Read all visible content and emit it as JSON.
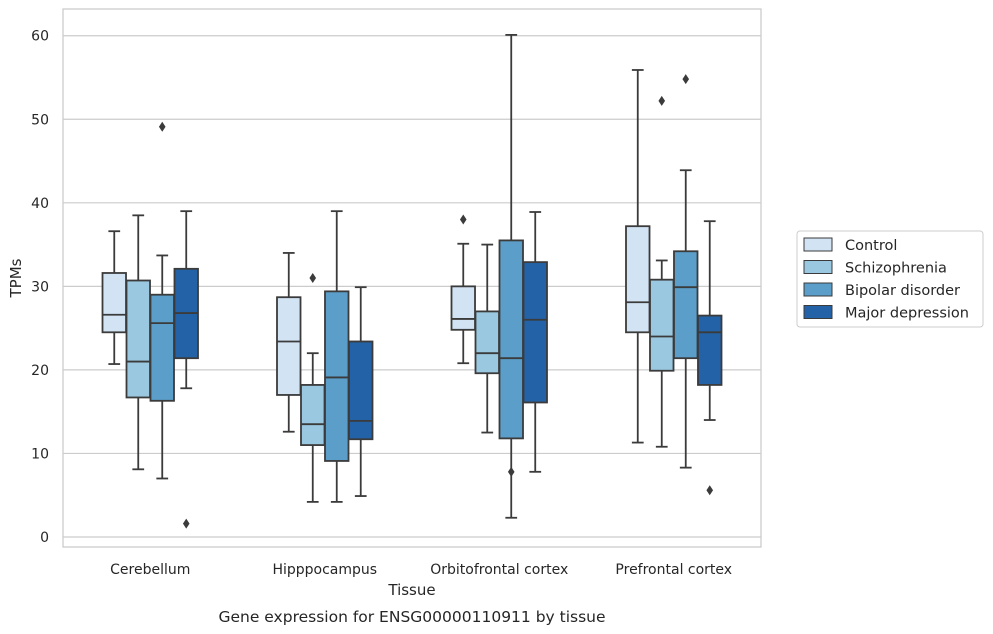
{
  "caption": "Gene expression for ENSG00000110911 by tissue",
  "chart_data": {
    "type": "box",
    "xlabel": "Tissue",
    "ylabel": "TPMs",
    "ylim": [
      -1.2,
      63.2
    ],
    "yticks": [
      0,
      10,
      20,
      30,
      40,
      50,
      60
    ],
    "grid": "horizontal",
    "legend_position": "center-right",
    "categories": [
      "Cerebellum",
      "Hipppocampus",
      "Orbitofrontal cortex",
      "Prefrontal cortex"
    ],
    "series": [
      {
        "name": "Control",
        "color": "#d2e3f3",
        "boxes": [
          {
            "whislo": 20.7,
            "q1": 24.5,
            "med": 26.6,
            "q3": 31.6,
            "whishi": 36.6,
            "fliers": []
          },
          {
            "whislo": 12.6,
            "q1": 17.0,
            "med": 23.4,
            "q3": 28.7,
            "whishi": 34.0,
            "fliers": []
          },
          {
            "whislo": 20.8,
            "q1": 24.8,
            "med": 26.1,
            "q3": 30.0,
            "whishi": 35.1,
            "fliers": [
              38.0
            ]
          },
          {
            "whislo": 11.3,
            "q1": 24.5,
            "med": 28.1,
            "q3": 37.2,
            "whishi": 55.9,
            "fliers": []
          }
        ]
      },
      {
        "name": "Schizophrenia",
        "color": "#9ac8e0",
        "boxes": [
          {
            "whislo": 8.1,
            "q1": 16.7,
            "med": 21.0,
            "q3": 30.7,
            "whishi": 38.5,
            "fliers": []
          },
          {
            "whislo": 4.2,
            "q1": 11.0,
            "med": 13.5,
            "q3": 18.2,
            "whishi": 22.0,
            "fliers": [
              31.0
            ]
          },
          {
            "whislo": 12.5,
            "q1": 19.6,
            "med": 22.0,
            "q3": 27.0,
            "whishi": 35.0,
            "fliers": []
          },
          {
            "whislo": 10.8,
            "q1": 19.9,
            "med": 24.0,
            "q3": 30.8,
            "whishi": 33.1,
            "fliers": [
              52.2
            ]
          }
        ]
      },
      {
        "name": "Bipolar disorder",
        "color": "#5a9ec9",
        "boxes": [
          {
            "whislo": 7.0,
            "q1": 16.3,
            "med": 25.6,
            "q3": 29.0,
            "whishi": 33.7,
            "fliers": [
              49.1
            ]
          },
          {
            "whislo": 4.2,
            "q1": 9.1,
            "med": 19.1,
            "q3": 29.4,
            "whishi": 39.0,
            "fliers": []
          },
          {
            "whislo": 2.3,
            "q1": 11.8,
            "med": 21.4,
            "q3": 35.5,
            "whishi": 60.1,
            "fliers": [
              7.8
            ]
          },
          {
            "whislo": 8.3,
            "q1": 21.4,
            "med": 29.9,
            "q3": 34.2,
            "whishi": 43.9,
            "fliers": [
              54.8
            ]
          }
        ]
      },
      {
        "name": "Major depression",
        "color": "#2362a7",
        "boxes": [
          {
            "whislo": 17.8,
            "q1": 21.4,
            "med": 26.8,
            "q3": 32.1,
            "whishi": 39.0,
            "fliers": [
              1.6
            ]
          },
          {
            "whislo": 4.9,
            "q1": 11.7,
            "med": 13.9,
            "q3": 23.4,
            "whishi": 29.9,
            "fliers": []
          },
          {
            "whislo": 7.8,
            "q1": 16.1,
            "med": 26.0,
            "q3": 32.9,
            "whishi": 38.9,
            "fliers": []
          },
          {
            "whislo": 14.0,
            "q1": 18.2,
            "med": 24.5,
            "q3": 26.5,
            "whishi": 37.8,
            "fliers": [
              5.6
            ]
          }
        ]
      }
    ]
  }
}
